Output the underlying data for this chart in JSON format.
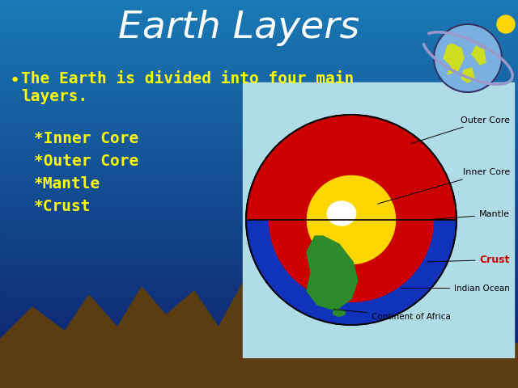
{
  "title": "Earth Layers",
  "title_color": "#FFFFFF",
  "title_fontsize": 34,
  "bg_top_color": "#0d1d6b",
  "bg_bottom_color": "#1a7ab5",
  "bullet_text": "The Earth is divided into four main\nlayers.",
  "bullet_color": "#FFFF00",
  "bullet_fontsize": 14,
  "list_items": [
    "*Inner Core",
    "*Outer Core",
    "*Mantle",
    "*Crust"
  ],
  "list_color": "#FFFF00",
  "list_fontsize": 14,
  "diagram_bg": "#b0dce8",
  "outer_sphere_color": "#1133bb",
  "outer_core_color": "#CC0000",
  "inner_core_color": "#FFD700",
  "innermost_color": "#FFFFFF",
  "continent_color": "#2d8a2d",
  "label_color": "#000000",
  "crust_label_color": "#CC0000",
  "mountain_color": "#5a3d10",
  "teal_color": "#00d4b8",
  "globe_ocean_color": "#7ab0e0",
  "globe_land_color": "#ccdd22",
  "globe_orbit_color": "#9999cc",
  "sun_color": "#FFD700"
}
